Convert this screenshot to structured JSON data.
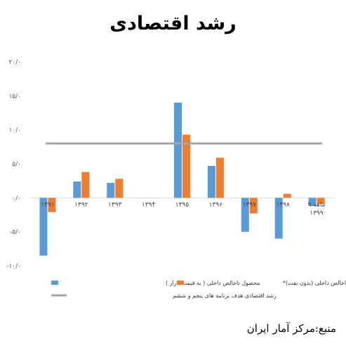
{
  "page": {
    "title": "رشد اقتصادی",
    "source": "منبع:مرکز آمار ایران"
  },
  "chart_data": {
    "type": "bar",
    "title": "رشد اقتصادی",
    "y_tick_labels": [
      "۲۰/۰",
      "۱۵/۰",
      "۱۰/۰",
      "۵/۰",
      "۰/۰",
      "-۵/۰",
      "-۱۰/۰"
    ],
    "y_ticks": [
      20,
      15,
      10,
      5,
      0,
      -5,
      -10
    ],
    "ylim": [
      -10,
      20
    ],
    "categories": [
      "۱۳۹۱",
      "۱۳۹۲",
      "۱۳۹۳",
      "۱۳۹۴",
      "۱۳۹۵",
      "۱۳۹۶",
      "۱۳۹۷",
      "۱۳۹۸",
      "۱۳۹۹ ۹ ماهه"
    ],
    "category_lines": [
      [
        "۱۳۹۱"
      ],
      [
        "۱۳۹۲"
      ],
      [
        "۱۳۹۳"
      ],
      [
        "۱۳۹۴"
      ],
      [
        "۱۳۹۵"
      ],
      [
        "۱۳۹۶"
      ],
      [
        "۱۳۹۷"
      ],
      [
        "۱۳۹۸"
      ],
      [
        "۹ ماهه",
        "۱۳۹۹"
      ]
    ],
    "series": [
      {
        "name": "محصول ناخالص داخلی ( به قیمت بازار )",
        "color": "#5b9bd5",
        "values": [
          -8.5,
          2.4,
          2.2,
          0.0,
          14.0,
          4.7,
          -5.0,
          -6.0,
          -1.2
        ]
      },
      {
        "name": "محصول ناخالص داخلی (بدون نفت)*",
        "color": "#ed7d31",
        "values": [
          -2.1,
          3.8,
          2.8,
          0.0,
          9.3,
          5.9,
          -2.3,
          0.6,
          -0.9
        ]
      }
    ],
    "reference_line": {
      "name": "رشد اقتصادی هدف برنامه های پنجم و ششم",
      "value": 8.0,
      "color": "#a5a5a5"
    },
    "grid": false,
    "legend_position": "bottom"
  }
}
